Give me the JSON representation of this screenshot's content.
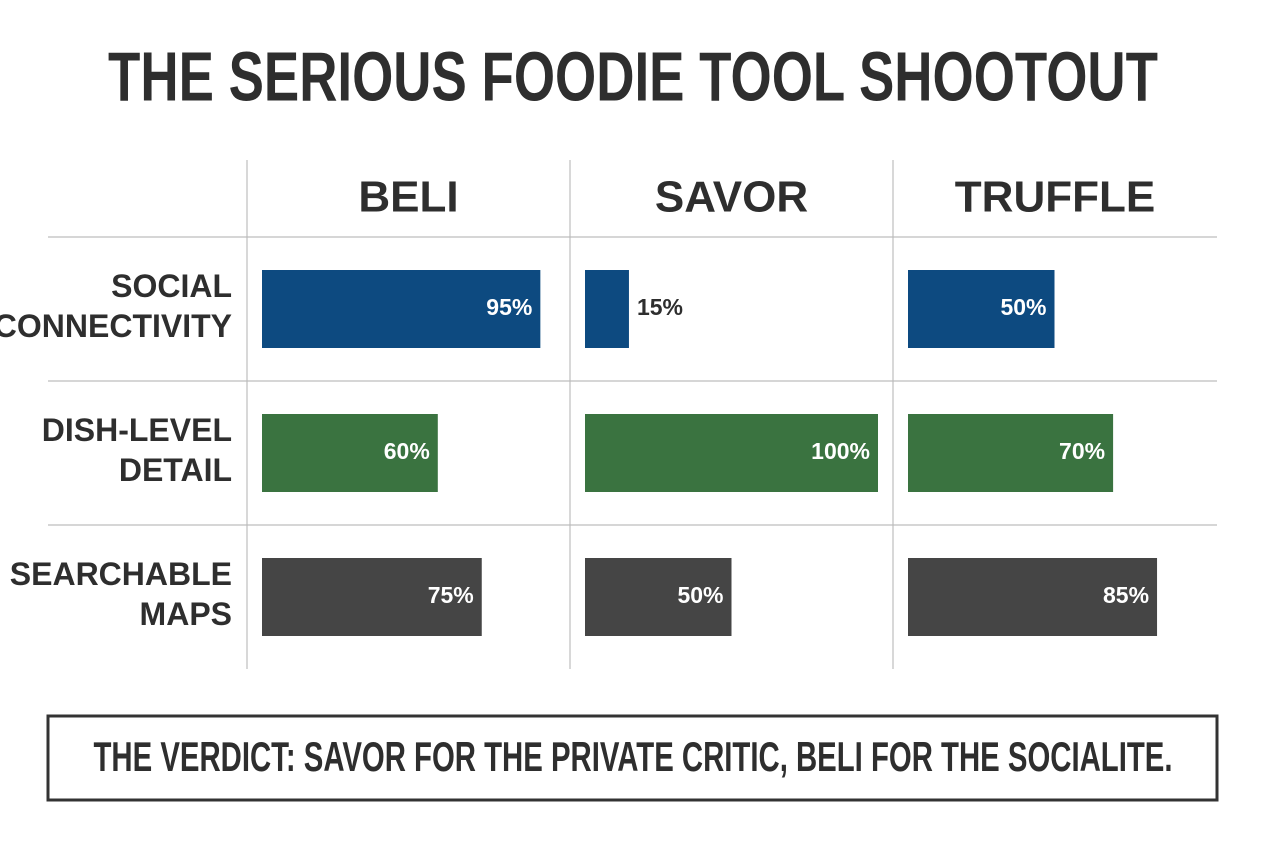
{
  "chart_data": {
    "type": "bar",
    "title": "THE SERIOUS FOODIE TOOL SHOOTOUT",
    "categories": [
      "BELI",
      "SAVOR",
      "TRUFFLE"
    ],
    "series": [
      {
        "name": "SOCIAL CONNECTIVITY",
        "color": "#0d4a80",
        "values": [
          95,
          15,
          50
        ],
        "value_labels": [
          "95%",
          "15%",
          "50%"
        ]
      },
      {
        "name": "DISH-LEVEL DETAIL",
        "color": "#3a7340",
        "values": [
          60,
          100,
          70
        ],
        "value_labels": [
          "60%",
          "100%",
          "70%"
        ]
      },
      {
        "name": "SEARCHABLE MAPS",
        "color": "#454545",
        "values": [
          75,
          50,
          85
        ],
        "value_labels": [
          "75%",
          "50%",
          "85%"
        ]
      }
    ],
    "xlim": [
      0,
      100
    ],
    "annotation": "THE VERDICT: SAVOR FOR THE PRIVATE CRITIC, BELI FOR THE SOCIALITE."
  }
}
